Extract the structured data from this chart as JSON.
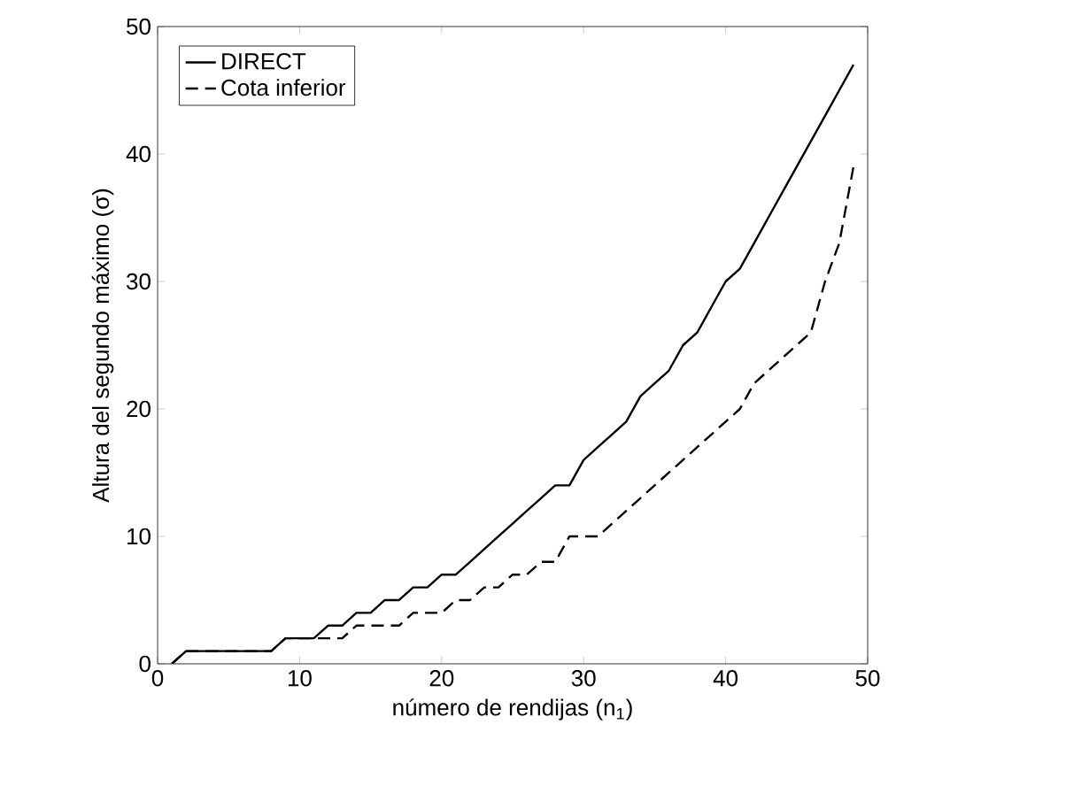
{
  "chart_data": {
    "type": "line",
    "xlabel": "número de rendijas (n$_{1}$)",
    "ylabel": "Altura del segundo máximo (σ)",
    "x": [
      1,
      2,
      3,
      4,
      5,
      6,
      7,
      8,
      9,
      10,
      11,
      12,
      13,
      14,
      15,
      16,
      17,
      18,
      19,
      20,
      21,
      22,
      23,
      24,
      25,
      26,
      27,
      28,
      29,
      30,
      31,
      32,
      33,
      34,
      35,
      36,
      37,
      38,
      39,
      40,
      41,
      42,
      43,
      44,
      45,
      46,
      47,
      48,
      49
    ],
    "xlim": [
      0,
      50
    ],
    "ylim": [
      0,
      50
    ],
    "xticks": [
      0,
      10,
      20,
      30,
      40,
      50
    ],
    "yticks": [
      0,
      10,
      20,
      30,
      40,
      50
    ],
    "legend": "top left",
    "series": [
      {
        "name": "DIRECT",
        "color": "#000000",
        "line_style": "solid",
        "values": [
          0,
          1,
          1,
          1,
          1,
          1,
          1,
          1,
          2,
          2,
          2,
          3,
          3,
          4,
          4,
          5,
          5,
          6,
          6,
          7,
          7,
          8,
          9,
          10,
          11,
          12,
          13,
          14,
          14,
          16,
          17,
          18,
          19,
          21,
          22,
          23,
          25,
          26,
          28,
          30,
          31,
          33,
          35,
          37,
          39,
          41,
          43,
          45,
          47
        ]
      },
      {
        "name": "Cota inferior",
        "color": "#000000",
        "line_style": "dashed",
        "values": [
          0,
          1,
          1,
          1,
          1,
          1,
          1,
          1,
          2,
          2,
          2,
          2,
          2,
          3,
          3,
          3,
          3,
          4,
          4,
          4,
          5,
          5,
          6,
          6,
          7,
          7,
          8,
          8,
          10,
          10,
          10,
          11,
          12,
          13,
          14,
          15,
          16,
          17,
          18,
          19,
          20,
          22,
          23,
          24,
          25,
          26,
          30,
          33,
          39
        ]
      }
    ]
  }
}
